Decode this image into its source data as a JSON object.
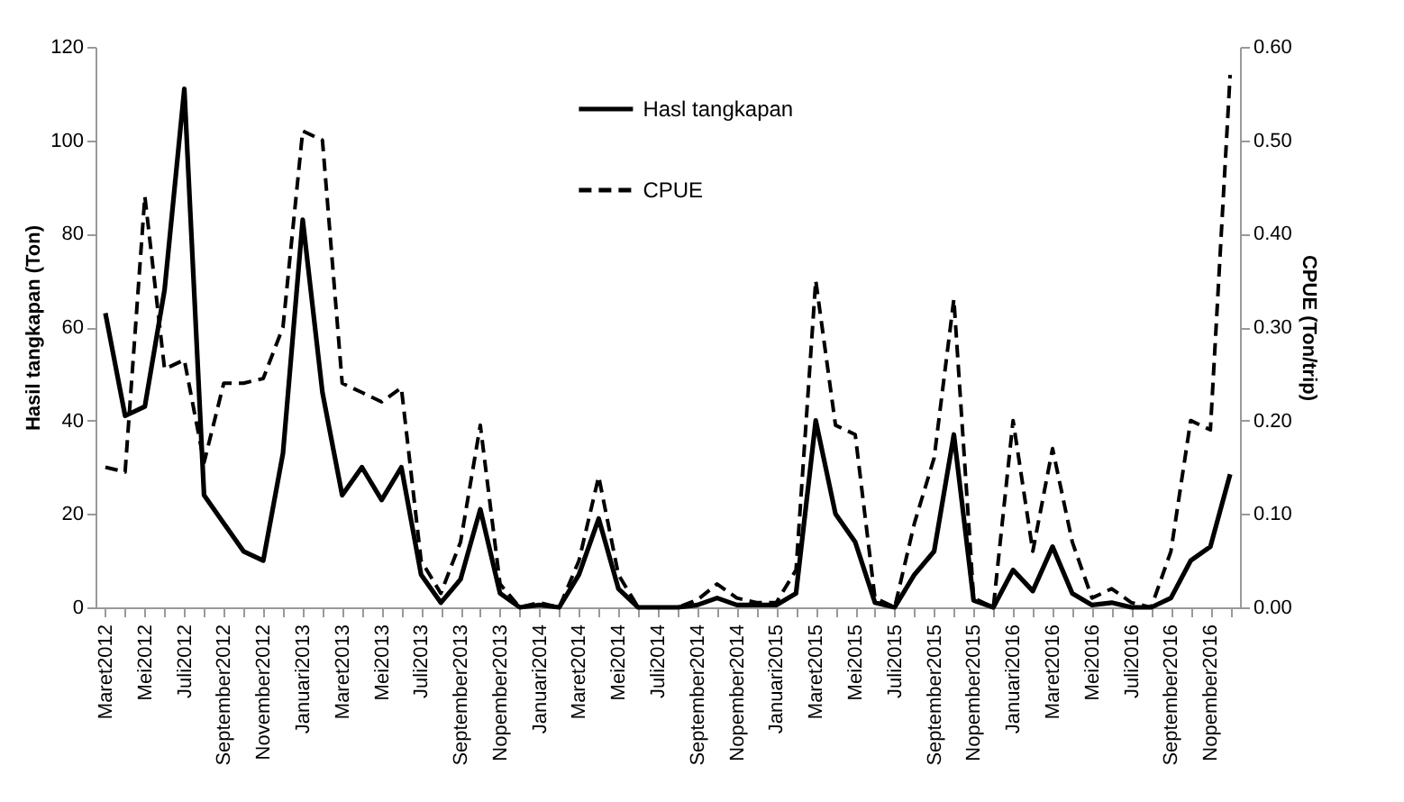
{
  "chart_data": {
    "type": "line",
    "categories": [
      "Maret2012",
      null,
      "Mei2012",
      null,
      "Juli2012",
      null,
      "September2012",
      null,
      "November2012",
      null,
      "Januari2013",
      null,
      "Maret2013",
      null,
      "Mei2013",
      null,
      "Juli2013",
      null,
      "September2013",
      null,
      "Nopember2013",
      null,
      "Januari2014",
      null,
      "Maret2014",
      null,
      "Mei2014",
      null,
      "Juli2014",
      null,
      "September2014",
      null,
      "Nopember2014",
      null,
      "Januari2015",
      null,
      "Maret2015",
      null,
      "Mei2015",
      null,
      "Juli2015",
      null,
      "September2015",
      null,
      "Nopember2015",
      null,
      "Januari2016",
      null,
      "Maret2016",
      null,
      "Mei2016",
      null,
      "Juli2016",
      null,
      "September2016",
      null,
      "Nopember2016",
      null
    ],
    "ylabel": "Hasil tangkapan (Ton)",
    "y2label": "CPUE (Ton/trip)",
    "ylim": [
      0,
      120
    ],
    "yticks": [
      0,
      20,
      40,
      60,
      80,
      100,
      120
    ],
    "y2lim": [
      0,
      0.6
    ],
    "y2ticks": [
      {
        "value": 0,
        "label": "0.00"
      },
      {
        "value": 0.1,
        "label": "0.10"
      },
      {
        "value": 0.2,
        "label": "0.20"
      },
      {
        "value": 0.3,
        "label": "0.30"
      },
      {
        "value": 0.4,
        "label": "0.40"
      },
      {
        "value": 0.5,
        "label": "0.50"
      },
      {
        "value": 0.6,
        "label": "0.60"
      }
    ],
    "legend": "top right",
    "grid": false,
    "marker": "none",
    "series": [
      {
        "name": "Hasl tangkapan",
        "color": "#000000",
        "line_style": "solid",
        "values": [
          63,
          41,
          43,
          68,
          111,
          24,
          18,
          12,
          10,
          33,
          83,
          46,
          24,
          30,
          23,
          30,
          7,
          1,
          6,
          21,
          3,
          0,
          0.5,
          0,
          7,
          19,
          4,
          0,
          0,
          0,
          0.5,
          2,
          0.5,
          0.5,
          0.5,
          3,
          40,
          20,
          14,
          1,
          0,
          7,
          12,
          37,
          1.5,
          0,
          8,
          3.5,
          13,
          3,
          0.5,
          1,
          0,
          0,
          2,
          10,
          13,
          28.5
        ]
      },
      {
        "name": "CPUE",
        "color": "#000000",
        "line_style": "dashed",
        "axis": "y2",
        "values": [
          0.15,
          0.145,
          0.44,
          0.255,
          0.265,
          0.155,
          0.24,
          0.24,
          0.245,
          0.3,
          0.51,
          0.5,
          0.24,
          0.23,
          0.22,
          0.235,
          0.05,
          0.015,
          0.07,
          0.195,
          0.025,
          0,
          0.005,
          0,
          0.05,
          0.14,
          0.035,
          0,
          0,
          0,
          0.008,
          0.025,
          0.01,
          0.005,
          0.005,
          0.04,
          0.35,
          0.195,
          0.185,
          0.01,
          0,
          0.09,
          0.16,
          0.33,
          0.01,
          0,
          0.2,
          0.06,
          0.17,
          0.07,
          0.01,
          0.02,
          0.005,
          0,
          0.06,
          0.2,
          0.19,
          0.57
        ]
      }
    ]
  }
}
